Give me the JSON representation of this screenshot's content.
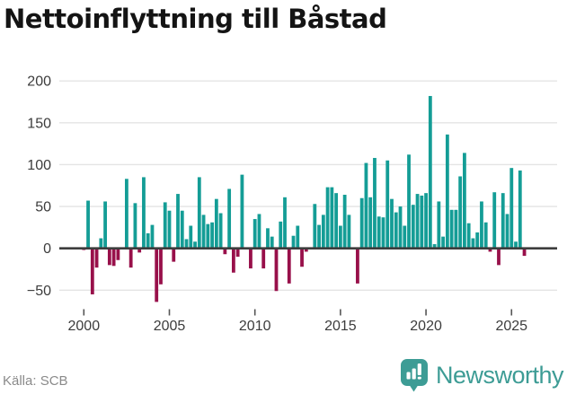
{
  "title": "Nettoinflyttning till Båstad",
  "source": "Källa: SCB",
  "brand": {
    "name": "Newsworthy"
  },
  "colors": {
    "positive": "#149d96",
    "negative": "#98104a",
    "axis": "#3d3d3d",
    "gridline": "#e4e4e4",
    "tick_label": "#3c3c3c",
    "logo_teal": "#3d9c95",
    "source_gray": "#8a8a8a"
  },
  "chart_data": {
    "type": "bar",
    "title": "Nettoinflyttning till Båstad",
    "xlabel": "",
    "ylabel": "",
    "frequency": "quarterly",
    "start_period": "2000Q1",
    "end_period": "2025Q4",
    "values": [
      -2,
      57,
      -55,
      -23,
      12,
      56,
      -20,
      -21,
      -14,
      0,
      83,
      -23,
      54,
      -5,
      85,
      18,
      28,
      -64,
      -43,
      55,
      45,
      -16,
      65,
      45,
      11,
      27,
      8,
      85,
      40,
      29,
      31,
      59,
      42,
      -7,
      71,
      -29,
      -10,
      88,
      0,
      -24,
      35,
      41,
      -24,
      24,
      14,
      -51,
      32,
      61,
      -42,
      15,
      27,
      -22,
      -4,
      0,
      53,
      28,
      40,
      73,
      73,
      66,
      27,
      64,
      40,
      0,
      -42,
      60,
      102,
      61,
      108,
      38,
      37,
      105,
      59,
      43,
      50,
      27,
      112,
      52,
      65,
      63,
      66,
      182,
      5,
      56,
      14,
      136,
      46,
      46,
      86,
      114,
      30,
      12,
      19,
      56,
      31,
      -4,
      67,
      -20,
      66,
      41,
      96,
      8,
      93,
      -9
    ],
    "xticks": [
      {
        "year": 2000,
        "label": "2000"
      },
      {
        "year": 2005,
        "label": "2005"
      },
      {
        "year": 2010,
        "label": "2010"
      },
      {
        "year": 2015,
        "label": "2015"
      },
      {
        "year": 2020,
        "label": "2020"
      },
      {
        "year": 2025,
        "label": "2025"
      }
    ],
    "yticks": [
      {
        "value": 200,
        "label": "200"
      },
      {
        "value": 150,
        "label": "150"
      },
      {
        "value": 100,
        "label": "100"
      },
      {
        "value": 50,
        "label": "50"
      },
      {
        "value": 0,
        "label": "0"
      },
      {
        "value": -50,
        "label": "−50"
      }
    ],
    "ylim": [
      -75,
      215
    ],
    "grid": true,
    "legend": "none"
  }
}
